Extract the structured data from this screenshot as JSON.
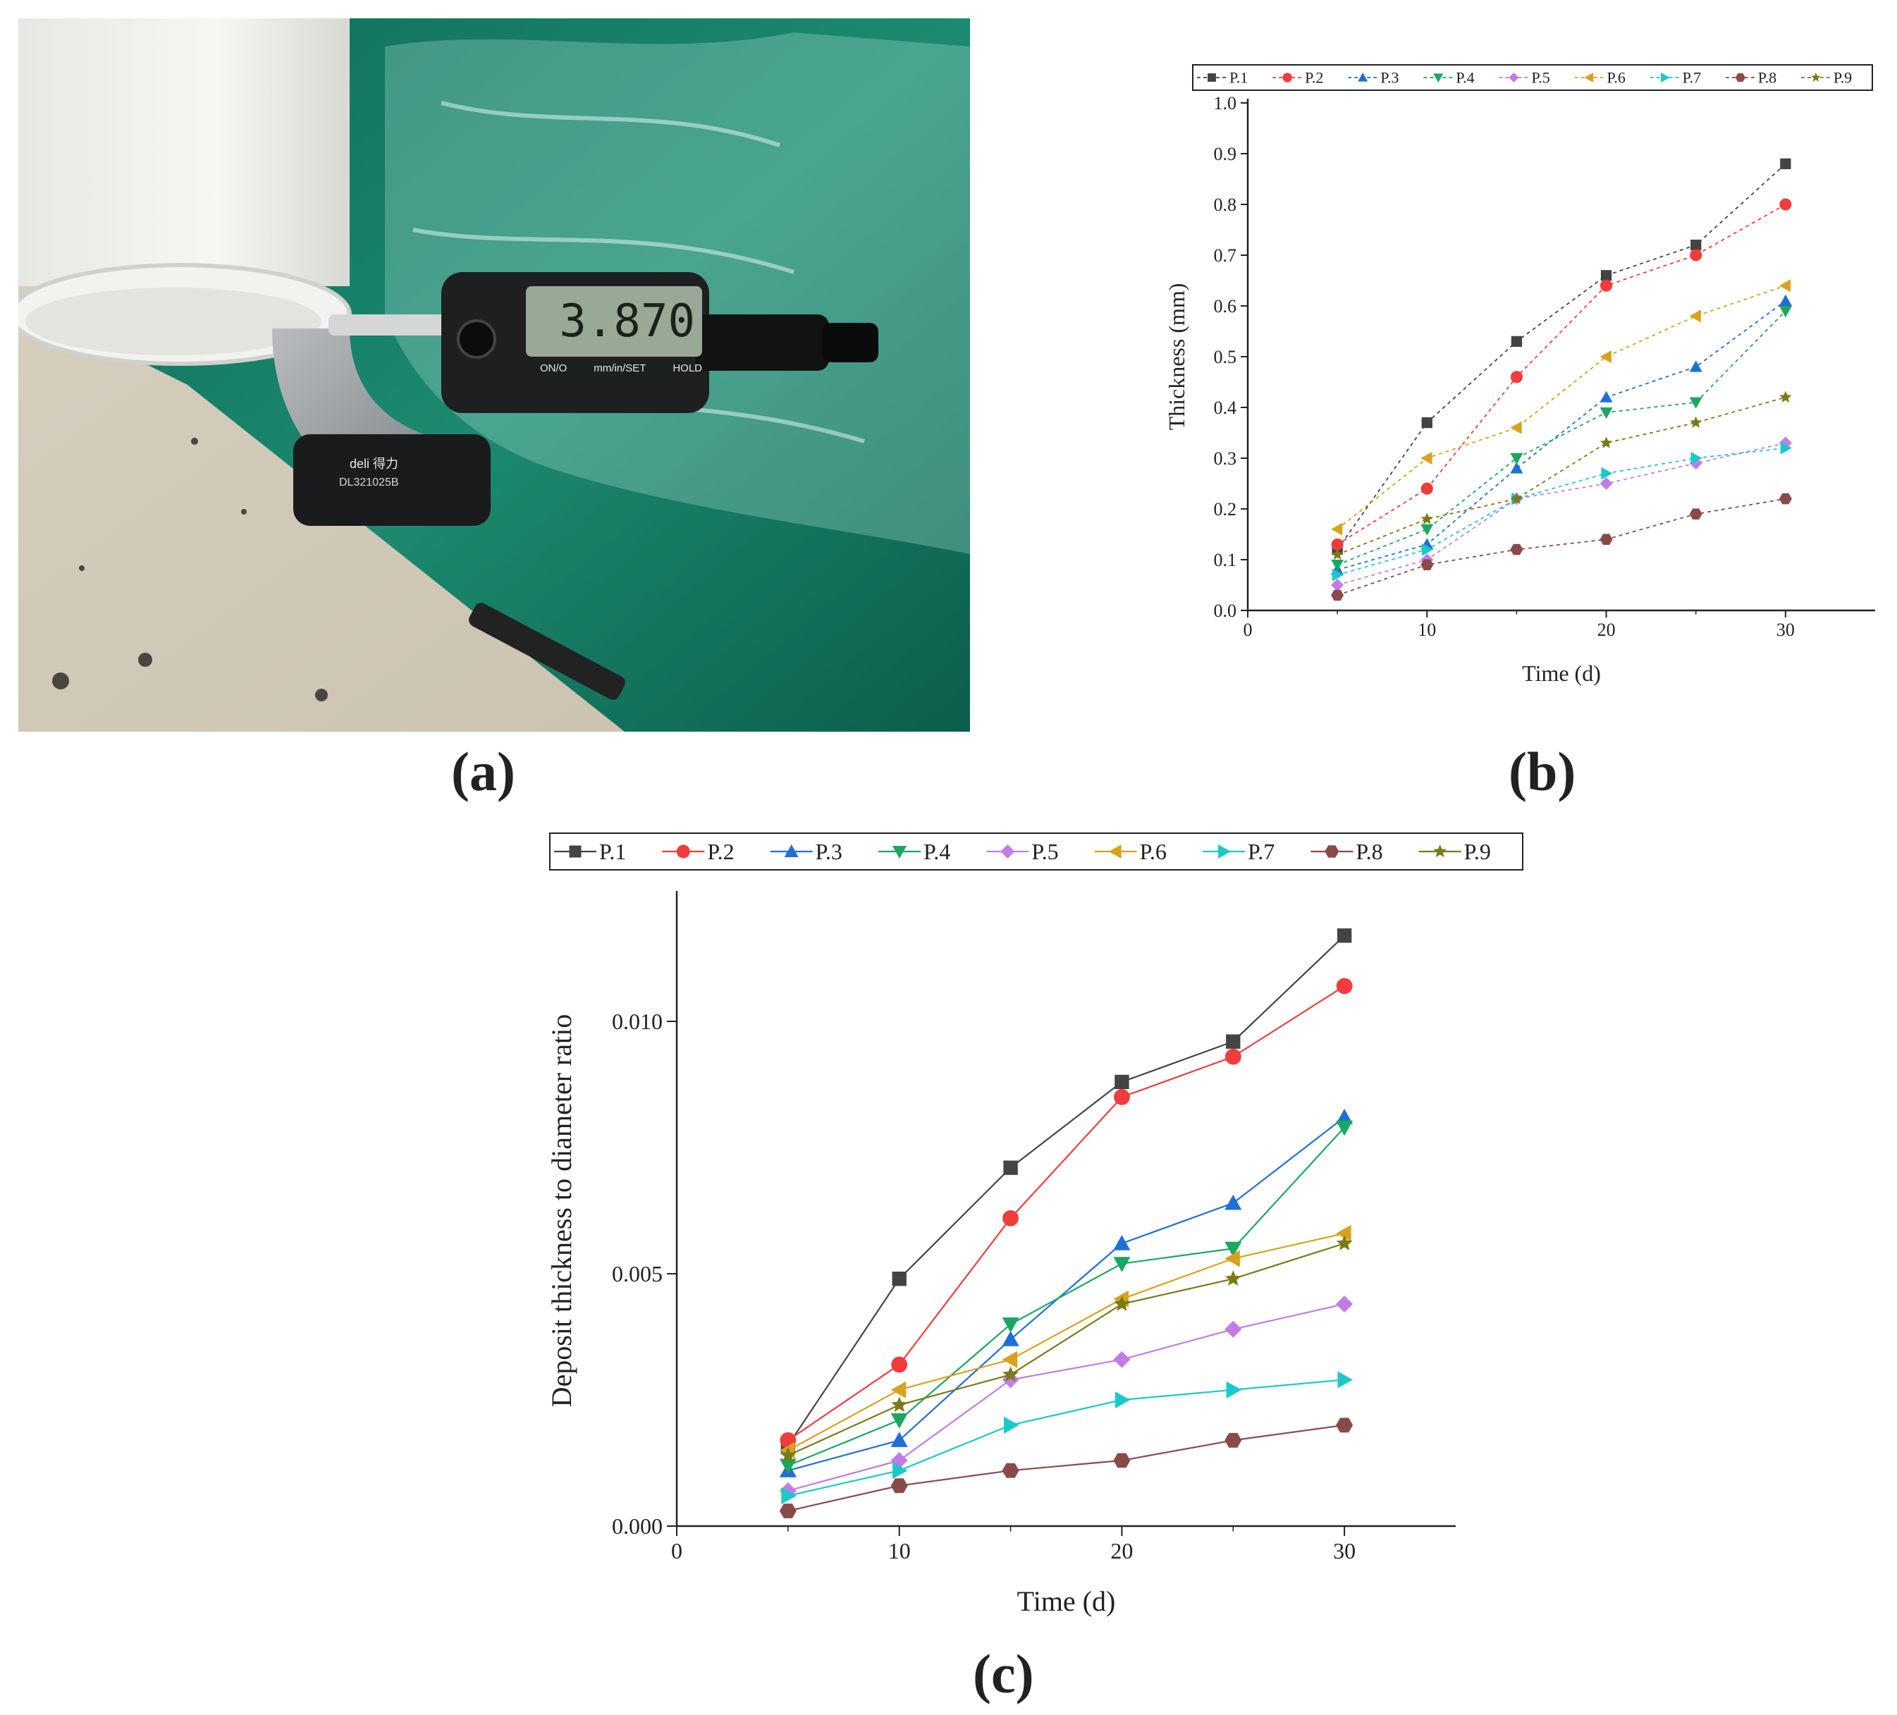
{
  "panel_labels": [
    "(a)",
    "(b)",
    "(c)"
  ],
  "photo": {
    "micrometer_reading": "3.870",
    "brand": "deli 得力",
    "model": "DL321025B",
    "buttons": [
      "ON/O",
      "mm/in/SET",
      "HOLD"
    ]
  },
  "colors": {
    "P.1": "#444444",
    "P.2": "#f03c3c",
    "P.3": "#1f6fd6",
    "P.4": "#1aa860",
    "P.5": "#c27ce8",
    "P.6": "#d8a21c",
    "P.7": "#1cc9c9",
    "P.8": "#8a4a4a",
    "P.9": "#7a7a18"
  },
  "chart_data": [
    {
      "type": "line",
      "panel": "(b)",
      "xlabel": "Time (d)",
      "ylabel": "Thickness (mm)",
      "xlim": [
        0,
        35
      ],
      "ylim": [
        0,
        1.0
      ],
      "xticks": [
        "0",
        "10",
        "20",
        "30"
      ],
      "yticks": [
        "0.0",
        "0.1",
        "0.2",
        "0.3",
        "0.4",
        "0.5",
        "0.6",
        "0.7",
        "0.8",
        "0.9",
        "1.0"
      ],
      "line_style": "dashed",
      "legend_position": "top",
      "x": [
        5,
        10,
        15,
        20,
        25,
        30
      ],
      "series": [
        {
          "name": "P.1",
          "marker": "square",
          "values": [
            0.12,
            0.37,
            0.53,
            0.66,
            0.72,
            0.88
          ]
        },
        {
          "name": "P.2",
          "marker": "circle",
          "values": [
            0.13,
            0.24,
            0.46,
            0.64,
            0.7,
            0.8
          ]
        },
        {
          "name": "P.3",
          "marker": "triangle-up",
          "values": [
            0.08,
            0.13,
            0.28,
            0.42,
            0.48,
            0.61
          ]
        },
        {
          "name": "P.4",
          "marker": "triangle-down",
          "values": [
            0.09,
            0.16,
            0.3,
            0.39,
            0.41,
            0.59
          ]
        },
        {
          "name": "P.5",
          "marker": "diamond",
          "values": [
            0.05,
            0.1,
            0.22,
            0.25,
            0.29,
            0.33
          ]
        },
        {
          "name": "P.6",
          "marker": "triangle-left",
          "values": [
            0.16,
            0.3,
            0.36,
            0.5,
            0.58,
            0.64
          ]
        },
        {
          "name": "P.7",
          "marker": "triangle-right",
          "values": [
            0.07,
            0.12,
            0.22,
            0.27,
            0.3,
            0.32
          ]
        },
        {
          "name": "P.8",
          "marker": "hexagon",
          "values": [
            0.03,
            0.09,
            0.12,
            0.14,
            0.19,
            0.22
          ]
        },
        {
          "name": "P.9",
          "marker": "star",
          "values": [
            0.11,
            0.18,
            0.22,
            0.33,
            0.37,
            0.42
          ]
        }
      ]
    },
    {
      "type": "line",
      "panel": "(c)",
      "xlabel": "Time (d)",
      "ylabel": "Deposit thickness to diameter ratio",
      "xlim": [
        0,
        35
      ],
      "ylim": [
        0,
        0.0125
      ],
      "xticks": [
        "0",
        "10",
        "20",
        "30"
      ],
      "yticks": [
        "0.000",
        "0.005",
        "0.010"
      ],
      "line_style": "solid",
      "legend_position": "top",
      "x": [
        5,
        10,
        15,
        20,
        25,
        30
      ],
      "series": [
        {
          "name": "P.1",
          "marker": "square",
          "values": [
            0.0016,
            0.0049,
            0.0071,
            0.0088,
            0.0096,
            0.0117
          ]
        },
        {
          "name": "P.2",
          "marker": "circle",
          "values": [
            0.0017,
            0.0032,
            0.0061,
            0.0085,
            0.0093,
            0.0107
          ]
        },
        {
          "name": "P.3",
          "marker": "triangle-up",
          "values": [
            0.0011,
            0.0017,
            0.0037,
            0.0056,
            0.0064,
            0.0081
          ]
        },
        {
          "name": "P.4",
          "marker": "triangle-down",
          "values": [
            0.0012,
            0.0021,
            0.004,
            0.0052,
            0.0055,
            0.0079
          ]
        },
        {
          "name": "P.5",
          "marker": "diamond",
          "values": [
            0.0007,
            0.0013,
            0.0029,
            0.0033,
            0.0039,
            0.0044
          ]
        },
        {
          "name": "P.6",
          "marker": "triangle-left",
          "values": [
            0.0015,
            0.0027,
            0.0033,
            0.0045,
            0.0053,
            0.0058
          ]
        },
        {
          "name": "P.7",
          "marker": "triangle-right",
          "values": [
            0.0006,
            0.0011,
            0.002,
            0.0025,
            0.0027,
            0.0029
          ]
        },
        {
          "name": "P.8",
          "marker": "hexagon",
          "values": [
            0.0003,
            0.0008,
            0.0011,
            0.0013,
            0.0017,
            0.002
          ]
        },
        {
          "name": "P.9",
          "marker": "star",
          "values": [
            0.0014,
            0.0024,
            0.003,
            0.0044,
            0.0049,
            0.0056
          ]
        }
      ]
    }
  ]
}
